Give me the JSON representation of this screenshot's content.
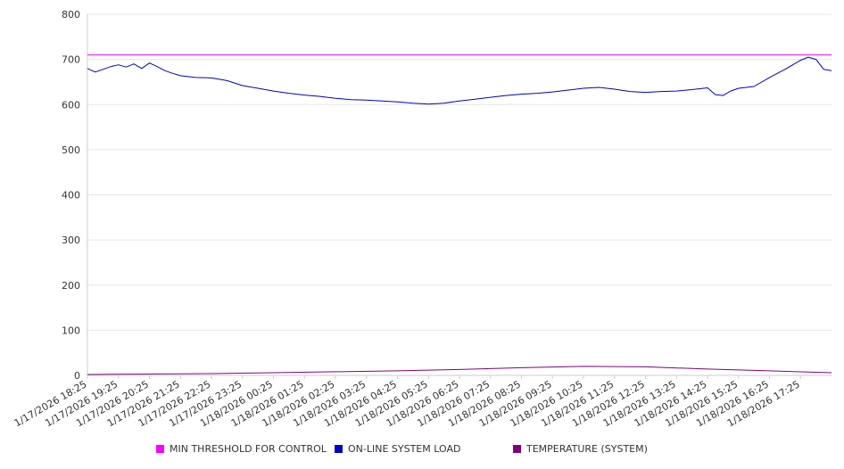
{
  "chart_data": {
    "type": "line",
    "title": "",
    "xlabel": "",
    "ylabel": "",
    "ylim": [
      0,
      800
    ],
    "yticks": [
      0,
      100,
      200,
      300,
      400,
      500,
      600,
      700,
      800
    ],
    "x_tick_labels": [
      "1/17/2026 18:25",
      "1/17/2026 19:25",
      "1/17/2026 20:25",
      "1/17/2026 21:25",
      "1/17/2026 22:25",
      "1/17/2026 23:25",
      "1/18/2026 00:25",
      "1/18/2026 01:25",
      "1/18/2026 02:25",
      "1/18/2026 03:25",
      "1/18/2026 04:25",
      "1/18/2026 05:25",
      "1/18/2026 06:25",
      "1/18/2026 07:25",
      "1/18/2026 08:25",
      "1/18/2026 09:25",
      "1/18/2026 10:25",
      "1/18/2026 11:25",
      "1/18/2026 12:25",
      "1/18/2026 13:25",
      "1/18/2026 14:25",
      "1/18/2026 15:25",
      "1/18/2026 16:25",
      "1/18/2026 17:25"
    ],
    "x_range": [
      "1/17/2026 18:25",
      "1/18/2026 18:25"
    ],
    "grid": true,
    "legend_position": "bottom",
    "series": [
      {
        "name": "MIN THRESHOLD FOR CONTROL",
        "color": "#ff00ff",
        "x": [
          "1/17/2026 18:25",
          "1/18/2026 18:25"
        ],
        "values": [
          710,
          710
        ]
      },
      {
        "name": "ON-LINE SYSTEM LOAD",
        "color": "#0000cc",
        "x": [
          "1/17/2026 18:25",
          "1/17/2026 18:40",
          "1/17/2026 18:55",
          "1/17/2026 19:10",
          "1/17/2026 19:25",
          "1/17/2026 19:40",
          "1/17/2026 19:55",
          "1/17/2026 20:10",
          "1/17/2026 20:25",
          "1/17/2026 20:40",
          "1/17/2026 20:55",
          "1/17/2026 21:10",
          "1/17/2026 21:25",
          "1/17/2026 21:55",
          "1/17/2026 22:25",
          "1/17/2026 22:55",
          "1/17/2026 23:25",
          "1/17/2026 23:55",
          "1/18/2026 00:25",
          "1/18/2026 00:55",
          "1/18/2026 01:25",
          "1/18/2026 01:55",
          "1/18/2026 02:25",
          "1/18/2026 02:55",
          "1/18/2026 03:25",
          "1/18/2026 03:55",
          "1/18/2026 04:25",
          "1/18/2026 04:55",
          "1/18/2026 05:25",
          "1/18/2026 05:55",
          "1/18/2026 06:25",
          "1/18/2026 06:55",
          "1/18/2026 07:25",
          "1/18/2026 07:55",
          "1/18/2026 08:25",
          "1/18/2026 08:55",
          "1/18/2026 09:25",
          "1/18/2026 09:55",
          "1/18/2026 10:25",
          "1/18/2026 10:55",
          "1/18/2026 11:25",
          "1/18/2026 11:55",
          "1/18/2026 12:25",
          "1/18/2026 12:55",
          "1/18/2026 13:25",
          "1/18/2026 13:55",
          "1/18/2026 14:25",
          "1/18/2026 14:40",
          "1/18/2026 14:55",
          "1/18/2026 15:10",
          "1/18/2026 15:25",
          "1/18/2026 15:55",
          "1/18/2026 16:25",
          "1/18/2026 16:55",
          "1/18/2026 17:25",
          "1/18/2026 17:40",
          "1/18/2026 17:55",
          "1/18/2026 18:10",
          "1/18/2026 18:25"
        ],
        "values": [
          680,
          672,
          678,
          684,
          688,
          683,
          690,
          680,
          692,
          684,
          675,
          669,
          664,
          660,
          659,
          653,
          642,
          636,
          630,
          625,
          621,
          618,
          614,
          611,
          610,
          608,
          606,
          603,
          601,
          603,
          608,
          612,
          616,
          620,
          623,
          625,
          628,
          632,
          636,
          638,
          634,
          629,
          627,
          629,
          630,
          633,
          637,
          622,
          620,
          630,
          636,
          640,
          660,
          678,
          698,
          705,
          700,
          678,
          675
        ]
      },
      {
        "name": "TEMPERATURE (SYSTEM)",
        "color": "#800080",
        "x": [
          "1/17/2026 18:25",
          "1/17/2026 20:25",
          "1/17/2026 22:25",
          "1/18/2026 00:25",
          "1/18/2026 02:25",
          "1/18/2026 04:25",
          "1/18/2026 06:25",
          "1/18/2026 08:25",
          "1/18/2026 10:25",
          "1/18/2026 12:25",
          "1/18/2026 14:25",
          "1/18/2026 16:25",
          "1/18/2026 18:25"
        ],
        "values": [
          2,
          3,
          4,
          6,
          8,
          10,
          13,
          17,
          20,
          19,
          14,
          10,
          6
        ]
      }
    ]
  }
}
